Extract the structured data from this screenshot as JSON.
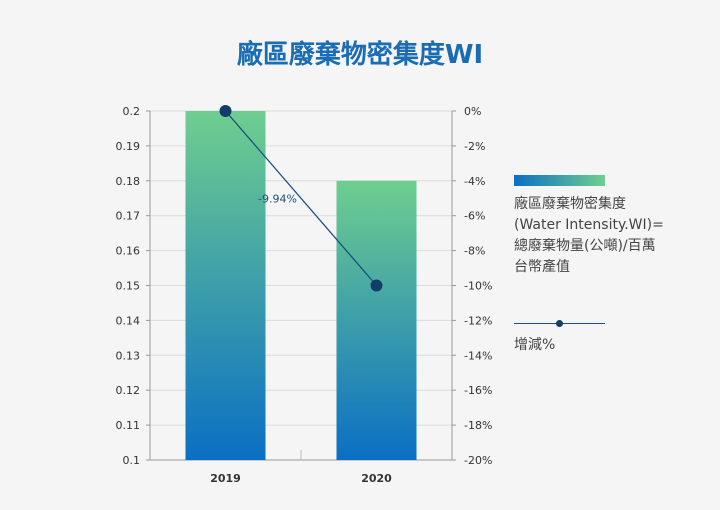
{
  "chart_data": {
    "type": "bar",
    "title": "廠區廢棄物密集度WI",
    "categories": [
      "2019",
      "2020"
    ],
    "series": [
      {
        "name": "廠區廢棄物密集度\n(Water Intensity.WI)=\n總廢棄物量(公噸)/百萬\n台幣產值",
        "type": "bar",
        "axis": "left",
        "values": [
          0.2,
          0.18
        ]
      },
      {
        "name": "增減%",
        "type": "line",
        "axis": "right",
        "values": [
          0,
          -10
        ]
      }
    ],
    "annotations": [
      {
        "text": "-9.94%"
      }
    ],
    "y_left": {
      "ylim": [
        0.1,
        0.2
      ],
      "ticks": [
        0.2,
        0.19,
        0.18,
        0.17,
        0.16,
        0.15,
        0.14,
        0.13,
        0.12,
        0.11,
        0.1
      ],
      "tick_labels": [
        "0.2",
        "0.19",
        "0.18",
        "0.17",
        "0.16",
        "0.15",
        "0.14",
        "0.13",
        "0.12",
        "0.11",
        "0.1"
      ]
    },
    "y_right": {
      "ylim": [
        -20,
        0
      ],
      "ticks": [
        0,
        -2,
        -4,
        -6,
        -8,
        -10,
        -12,
        -14,
        -16,
        -18,
        -20
      ],
      "tick_labels": [
        "0%",
        "-2%",
        "-4%",
        "-6%",
        "-8%",
        "-10%",
        "-12%",
        "-14%",
        "-16%",
        "-18%",
        "-20%"
      ]
    },
    "grid": true,
    "legend_position": "right",
    "colors": {
      "bar_bottom": "#0a6fc4",
      "bar_top": "#6fce8f",
      "line": "#1a4f80",
      "marker": "#123d6b",
      "grid": "#dcdcdc",
      "title": "#1a6db5"
    }
  }
}
